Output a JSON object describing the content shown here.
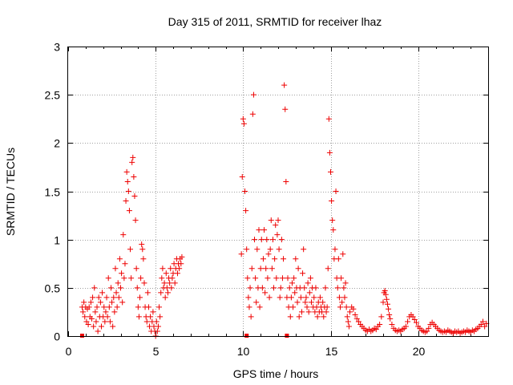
{
  "chart_data": {
    "type": "scatter",
    "title": "Day 315 of 2011, SRMTID for receiver lhaz",
    "xlabel": "GPS time / hours",
    "ylabel": "SRMTID / TECUs",
    "xlim": [
      0,
      24
    ],
    "ylim": [
      0,
      3
    ],
    "xticks": [
      0,
      5,
      10,
      15,
      20
    ],
    "yticks": [
      0,
      0.5,
      1,
      1.5,
      2,
      2.5,
      3
    ],
    "xtick_labels": [
      "0",
      "5",
      "10",
      "15",
      "20"
    ],
    "ytick_labels": [
      "0",
      "0.5",
      "1",
      "1.5",
      "2",
      "2.5",
      "3"
    ],
    "grid": true,
    "color": "#ee0000",
    "marker": "plus",
    "series": [
      {
        "values_x": [
          0.8,
          0.85,
          0.9,
          0.95,
          1.0,
          1.05,
          1.1,
          1.15,
          1.2,
          1.25,
          1.3,
          1.35,
          1.4,
          1.45,
          1.5,
          1.55,
          1.6,
          1.65,
          1.7,
          1.75,
          1.8,
          1.85,
          1.9,
          1.95,
          2.0,
          2.05,
          2.1,
          2.15,
          2.2,
          2.25,
          2.3,
          2.35,
          2.4,
          2.45,
          2.5,
          2.55,
          2.6,
          2.65,
          2.7,
          2.75,
          2.8,
          2.85,
          2.9,
          2.95,
          3.0,
          3.05,
          3.1,
          3.15,
          3.2,
          3.25,
          3.3,
          3.35,
          3.4,
          3.45,
          3.5,
          3.55,
          3.6,
          3.65,
          3.7,
          3.75,
          3.8,
          3.85,
          3.9,
          3.95,
          4.0,
          4.05,
          4.1,
          4.15,
          4.2,
          4.25,
          4.3,
          4.35,
          4.4,
          4.45,
          4.5,
          4.55,
          4.6,
          4.65,
          4.7,
          4.75,
          4.8,
          4.85,
          4.9,
          4.95,
          5.0,
          5.05,
          5.1,
          5.15,
          5.2,
          5.25,
          5.3,
          5.35,
          5.4,
          5.45,
          5.5,
          5.55,
          5.6,
          5.65,
          5.7,
          5.75,
          5.8,
          5.85,
          5.9,
          5.95,
          6.0,
          6.05,
          6.1,
          6.15,
          6.2,
          6.25,
          6.3,
          6.35,
          6.4,
          6.45,
          6.5
        ],
        "values_y": [
          0.3,
          0.25,
          0.35,
          0.2,
          0.3,
          0.15,
          0.28,
          0.12,
          0.3,
          0.2,
          0.35,
          0.18,
          0.4,
          0.1,
          0.5,
          0.25,
          0.15,
          0.3,
          0.05,
          0.4,
          0.2,
          0.35,
          0.1,
          0.45,
          0.2,
          0.3,
          0.15,
          0.25,
          0.4,
          0.2,
          0.6,
          0.3,
          0.15,
          0.5,
          0.35,
          0.1,
          0.4,
          0.25,
          0.7,
          0.45,
          0.3,
          0.55,
          0.4,
          0.8,
          0.5,
          0.65,
          0.35,
          1.05,
          0.6,
          0.75,
          1.4,
          1.7,
          1.6,
          1.5,
          1.3,
          0.9,
          0.6,
          1.8,
          1.85,
          1.65,
          1.45,
          1.2,
          0.7,
          0.5,
          0.3,
          0.2,
          0.4,
          0.6,
          0.95,
          0.9,
          0.8,
          0.55,
          0.3,
          0.2,
          0.15,
          0.45,
          0.3,
          0.1,
          0.2,
          0.05,
          0.15,
          0.25,
          0.1,
          0.05,
          0.0,
          0.15,
          0.05,
          0.1,
          0.3,
          0.2,
          0.45,
          0.6,
          0.7,
          0.5,
          0.55,
          0.4,
          0.65,
          0.5,
          0.45,
          0.6,
          0.55,
          0.7,
          0.5,
          0.6,
          0.65,
          0.75,
          0.55,
          0.7,
          0.8,
          0.65,
          0.75,
          0.7,
          0.8,
          0.75,
          0.82
        ]
      },
      {
        "values_x": [
          9.9,
          9.95,
          10.0,
          10.05,
          10.1,
          10.15,
          10.2,
          10.25,
          10.3,
          10.35,
          10.4,
          10.45,
          10.5,
          10.55,
          10.6,
          10.65,
          10.7,
          10.75,
          10.8,
          10.85,
          10.9,
          10.95,
          11.0,
          11.05,
          11.1,
          11.15,
          11.2,
          11.25,
          11.3,
          11.35,
          11.4,
          11.45,
          11.5,
          11.55,
          11.6,
          11.65,
          11.7,
          11.75,
          11.8,
          11.85,
          11.9,
          11.95,
          12.0,
          12.05,
          12.1,
          12.15,
          12.2,
          12.25,
          12.3,
          12.35,
          12.4,
          12.45,
          12.5,
          12.55,
          12.6,
          12.65,
          12.7,
          12.75,
          12.8,
          12.85,
          12.9,
          12.95,
          13.0,
          13.05,
          13.1,
          13.15,
          13.2,
          13.25,
          13.3,
          13.35,
          13.4,
          13.45,
          13.5,
          13.55,
          13.6,
          13.65,
          13.7,
          13.75,
          13.8,
          13.85,
          13.9,
          13.95,
          14.0,
          14.05,
          14.1,
          14.15,
          14.2,
          14.25,
          14.3,
          14.35,
          14.4,
          14.45,
          14.5,
          14.55,
          14.6,
          14.65,
          14.7,
          14.75,
          14.8,
          14.85,
          14.9,
          14.95,
          15.0,
          15.05,
          15.1,
          15.15,
          15.2,
          15.25,
          15.3,
          15.35,
          15.4,
          15.45,
          15.5,
          15.55,
          15.6,
          15.65,
          15.7,
          15.75,
          15.8,
          15.85,
          15.9,
          15.95,
          16.0,
          16.05
        ],
        "values_y": [
          0.85,
          1.65,
          2.25,
          2.2,
          1.5,
          1.3,
          0.9,
          0.6,
          0.4,
          0.3,
          0.5,
          0.2,
          0.7,
          2.3,
          2.5,
          1.0,
          0.6,
          0.35,
          0.9,
          0.5,
          1.1,
          0.3,
          0.7,
          1.0,
          0.5,
          0.8,
          1.1,
          0.45,
          0.7,
          1.0,
          0.6,
          0.85,
          0.4,
          0.9,
          1.2,
          0.7,
          1.0,
          0.5,
          0.8,
          1.15,
          0.6,
          1.05,
          1.2,
          0.9,
          0.4,
          0.5,
          1.0,
          0.6,
          0.8,
          2.6,
          2.35,
          1.6,
          0.4,
          0.6,
          0.3,
          0.5,
          0.2,
          0.4,
          0.55,
          0.3,
          0.6,
          0.45,
          0.8,
          0.5,
          0.35,
          0.7,
          0.2,
          0.5,
          0.4,
          0.25,
          0.65,
          0.9,
          0.5,
          0.35,
          0.4,
          0.3,
          0.55,
          0.25,
          0.45,
          0.6,
          0.35,
          0.5,
          0.3,
          0.4,
          0.25,
          0.5,
          0.3,
          0.2,
          0.35,
          0.25,
          0.4,
          0.3,
          0.25,
          0.35,
          0.2,
          0.3,
          0.5,
          0.25,
          0.3,
          0.7,
          2.25,
          1.9,
          1.7,
          1.4,
          1.2,
          1.1,
          0.8,
          0.9,
          1.5,
          0.6,
          0.5,
          0.8,
          0.4,
          0.3,
          0.6,
          0.35,
          0.85,
          0.5,
          0.4,
          0.55,
          0.3,
          0.2,
          0.15,
          0.1
        ]
      },
      {
        "values_x": [
          16.1,
          16.2,
          16.3,
          16.4,
          16.5,
          16.6,
          16.7,
          16.8,
          16.9,
          17.0,
          17.1,
          17.2,
          17.3,
          17.4,
          17.5,
          17.6,
          17.7,
          17.8,
          17.9,
          18.0,
          18.05,
          18.1,
          18.15,
          18.2,
          18.25,
          18.3,
          18.35,
          18.4,
          18.5,
          18.6,
          18.7,
          18.8,
          18.9,
          19.0,
          19.1,
          19.2,
          19.3,
          19.4,
          19.5,
          19.6,
          19.7,
          19.8,
          19.9,
          20.0,
          20.1,
          20.2,
          20.3,
          20.4,
          20.5,
          20.6,
          20.7,
          20.8,
          20.9,
          21.0,
          21.1,
          21.2,
          21.3,
          21.4,
          21.5,
          21.6,
          21.7,
          21.8,
          21.9,
          22.0,
          22.1,
          22.2,
          22.3,
          22.4,
          22.5,
          22.6,
          22.7,
          22.8,
          22.9,
          23.0,
          23.1,
          23.2,
          23.3,
          23.4,
          23.5,
          23.6,
          23.7,
          23.8,
          23.9
        ],
        "values_y": [
          0.25,
          0.3,
          0.28,
          0.22,
          0.18,
          0.15,
          0.12,
          0.1,
          0.08,
          0.06,
          0.05,
          0.07,
          0.05,
          0.06,
          0.08,
          0.07,
          0.1,
          0.12,
          0.2,
          0.35,
          0.45,
          0.47,
          0.43,
          0.38,
          0.33,
          0.28,
          0.22,
          0.18,
          0.12,
          0.08,
          0.06,
          0.05,
          0.06,
          0.05,
          0.07,
          0.08,
          0.1,
          0.15,
          0.2,
          0.22,
          0.2,
          0.17,
          0.14,
          0.1,
          0.08,
          0.06,
          0.05,
          0.04,
          0.05,
          0.08,
          0.12,
          0.14,
          0.12,
          0.1,
          0.08,
          0.06,
          0.05,
          0.04,
          0.05,
          0.04,
          0.06,
          0.05,
          0.04,
          0.03,
          0.05,
          0.04,
          0.05,
          0.03,
          0.04,
          0.05,
          0.04,
          0.06,
          0.05,
          0.04,
          0.06,
          0.05,
          0.07,
          0.08,
          0.1,
          0.12,
          0.15,
          0.1,
          0.13
        ]
      }
    ],
    "square_markers_x": [
      0.8,
      10.2,
      12.5
    ],
    "square_markers_y": [
      0,
      0,
      0
    ]
  }
}
